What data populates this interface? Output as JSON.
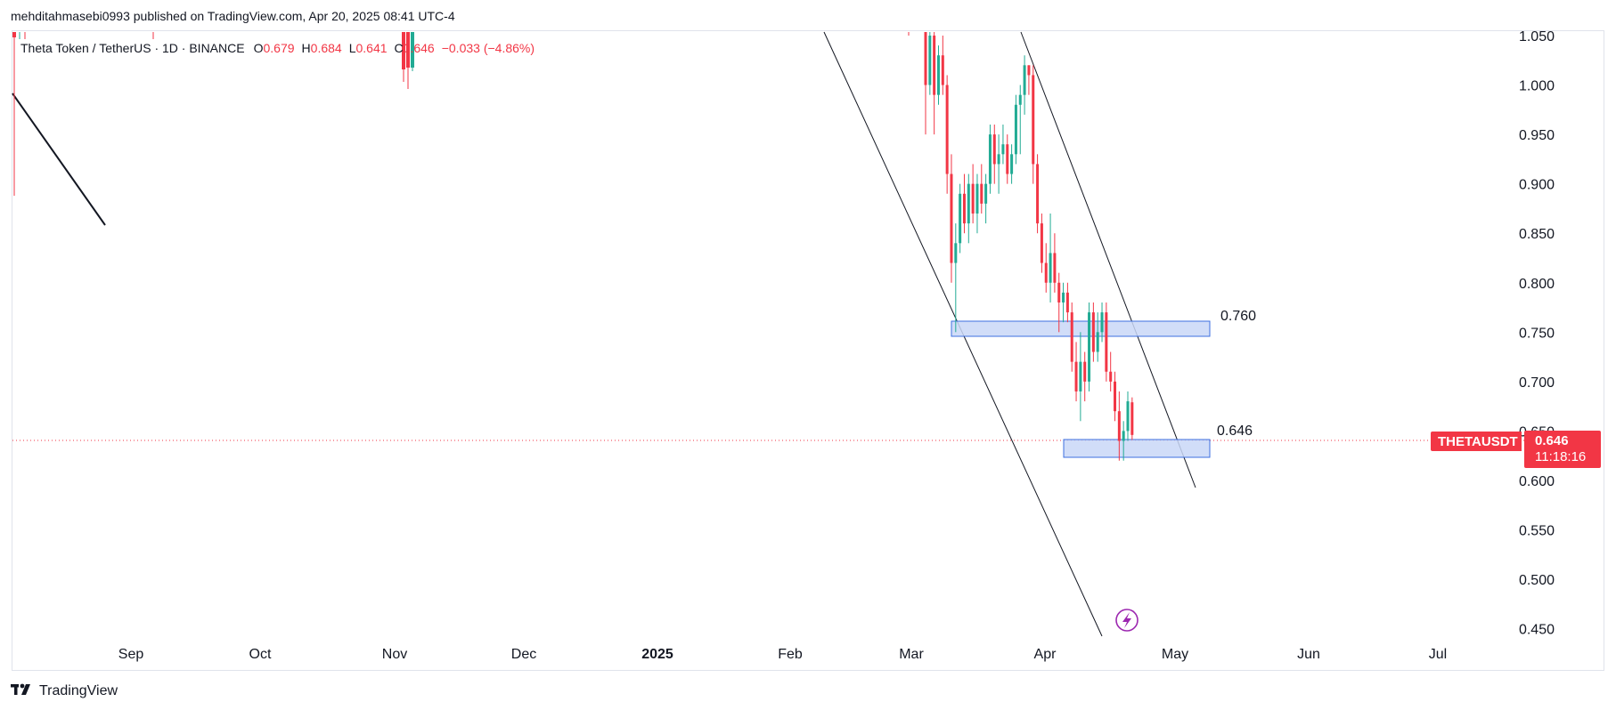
{
  "header": {
    "publish_line": "mehditahmasebi0993 published on TradingView.com, Apr 20, 2025 08:41 UTC-4"
  },
  "legend": {
    "symbol": "Theta Token / TetherUS · 1D · BINANCE",
    "o_label": "O",
    "o_value": "0.679",
    "h_label": "H",
    "h_value": "0.684",
    "l_label": "L",
    "l_value": "0.641",
    "c_label": "C",
    "c_value": "0.646",
    "change": "−0.033 (−4.86%)"
  },
  "price_tag": {
    "ticker": "THETAUSDT",
    "price": "0.646",
    "countdown": "11:18:16"
  },
  "footer": {
    "brand": "TradingView"
  },
  "colors": {
    "up": "#22ab94",
    "down": "#f23645",
    "zone_fill": "#c9d7f7",
    "zone_stroke": "#3d6fe0",
    "line": "#131722"
  },
  "chart_data": {
    "type": "candlestick",
    "title": "",
    "xlabel": "",
    "ylabel": "",
    "x_axis_labels": [
      "Sep",
      "Oct",
      "Nov",
      "Dec",
      "2025",
      "Feb",
      "Mar",
      "Apr",
      "May",
      "Jun",
      "Jul"
    ],
    "y_axis_labels": [
      "1.050",
      "1.000",
      "0.950",
      "0.900",
      "0.850",
      "0.800",
      "0.750",
      "0.700",
      "0.650",
      "0.600",
      "0.550",
      "0.500",
      "0.450"
    ],
    "ylim": [
      0.443,
      1.064
    ],
    "last_price": 0.646,
    "annotations": [
      {
        "type": "zone",
        "label": "0.760",
        "low": 0.752,
        "high": 0.767,
        "x_start": "2025-03-10",
        "x_end": "2025-05-08"
      },
      {
        "type": "zone",
        "label": "0.646",
        "low": 0.63,
        "high": 0.648,
        "x_start": "2025-04-07",
        "x_end": "2025-05-08"
      }
    ],
    "candles_visible_window": "2025-02-28 to 2025-04-20",
    "candles": [
      {
        "o": 1.06,
        "h": 1.07,
        "l": 0.95,
        "c": 1.0
      },
      {
        "o": 1.0,
        "h": 1.07,
        "l": 0.99,
        "c": 1.05
      },
      {
        "o": 1.05,
        "h": 1.06,
        "l": 0.95,
        "c": 0.99
      },
      {
        "o": 0.99,
        "h": 1.04,
        "l": 0.98,
        "c": 1.03
      },
      {
        "o": 1.03,
        "h": 1.05,
        "l": 0.99,
        "c": 1.0
      },
      {
        "o": 1.0,
        "h": 1.01,
        "l": 0.89,
        "c": 0.91
      },
      {
        "o": 0.91,
        "h": 0.93,
        "l": 0.8,
        "c": 0.82
      },
      {
        "o": 0.82,
        "h": 0.86,
        "l": 0.75,
        "c": 0.84
      },
      {
        "o": 0.84,
        "h": 0.9,
        "l": 0.83,
        "c": 0.89
      },
      {
        "o": 0.89,
        "h": 0.91,
        "l": 0.85,
        "c": 0.86
      },
      {
        "o": 0.86,
        "h": 0.91,
        "l": 0.84,
        "c": 0.9
      },
      {
        "o": 0.9,
        "h": 0.92,
        "l": 0.86,
        "c": 0.87
      },
      {
        "o": 0.87,
        "h": 0.91,
        "l": 0.85,
        "c": 0.9
      },
      {
        "o": 0.9,
        "h": 0.92,
        "l": 0.87,
        "c": 0.88
      },
      {
        "o": 0.88,
        "h": 0.91,
        "l": 0.86,
        "c": 0.9
      },
      {
        "o": 0.9,
        "h": 0.96,
        "l": 0.89,
        "c": 0.95
      },
      {
        "o": 0.95,
        "h": 0.96,
        "l": 0.9,
        "c": 0.92
      },
      {
        "o": 0.92,
        "h": 0.95,
        "l": 0.89,
        "c": 0.93
      },
      {
        "o": 0.93,
        "h": 0.96,
        "l": 0.92,
        "c": 0.94
      },
      {
        "o": 0.94,
        "h": 0.95,
        "l": 0.9,
        "c": 0.91
      },
      {
        "o": 0.91,
        "h": 0.94,
        "l": 0.9,
        "c": 0.93
      },
      {
        "o": 0.93,
        "h": 0.99,
        "l": 0.92,
        "c": 0.98
      },
      {
        "o": 0.98,
        "h": 1.0,
        "l": 0.93,
        "c": 0.99
      },
      {
        "o": 0.99,
        "h": 1.03,
        "l": 0.97,
        "c": 1.02
      },
      {
        "o": 1.02,
        "h": 1.02,
        "l": 0.99,
        "c": 1.01
      },
      {
        "o": 1.01,
        "h": 1.02,
        "l": 0.9,
        "c": 0.92
      },
      {
        "o": 0.92,
        "h": 0.93,
        "l": 0.85,
        "c": 0.86
      },
      {
        "o": 0.86,
        "h": 0.87,
        "l": 0.81,
        "c": 0.82
      },
      {
        "o": 0.82,
        "h": 0.84,
        "l": 0.79,
        "c": 0.8
      },
      {
        "o": 0.8,
        "h": 0.87,
        "l": 0.78,
        "c": 0.83
      },
      {
        "o": 0.83,
        "h": 0.85,
        "l": 0.79,
        "c": 0.8
      },
      {
        "o": 0.8,
        "h": 0.81,
        "l": 0.75,
        "c": 0.78
      },
      {
        "o": 0.78,
        "h": 0.8,
        "l": 0.76,
        "c": 0.79
      },
      {
        "o": 0.79,
        "h": 0.8,
        "l": 0.76,
        "c": 0.77
      },
      {
        "o": 0.77,
        "h": 0.78,
        "l": 0.71,
        "c": 0.72
      },
      {
        "o": 0.72,
        "h": 0.74,
        "l": 0.68,
        "c": 0.69
      },
      {
        "o": 0.69,
        "h": 0.75,
        "l": 0.66,
        "c": 0.72
      },
      {
        "o": 0.72,
        "h": 0.73,
        "l": 0.68,
        "c": 0.7
      },
      {
        "o": 0.7,
        "h": 0.78,
        "l": 0.69,
        "c": 0.77
      },
      {
        "o": 0.77,
        "h": 0.78,
        "l": 0.72,
        "c": 0.73
      },
      {
        "o": 0.73,
        "h": 0.77,
        "l": 0.72,
        "c": 0.75
      },
      {
        "o": 0.75,
        "h": 0.78,
        "l": 0.74,
        "c": 0.77
      },
      {
        "o": 0.77,
        "h": 0.78,
        "l": 0.7,
        "c": 0.71
      },
      {
        "o": 0.71,
        "h": 0.73,
        "l": 0.69,
        "c": 0.7
      },
      {
        "o": 0.7,
        "h": 0.71,
        "l": 0.66,
        "c": 0.67
      },
      {
        "o": 0.67,
        "h": 0.69,
        "l": 0.62,
        "c": 0.64
      },
      {
        "o": 0.64,
        "h": 0.66,
        "l": 0.62,
        "c": 0.65
      },
      {
        "o": 0.65,
        "h": 0.69,
        "l": 0.64,
        "c": 0.68
      },
      {
        "o": 0.679,
        "h": 0.684,
        "l": 0.641,
        "c": 0.646
      }
    ]
  }
}
